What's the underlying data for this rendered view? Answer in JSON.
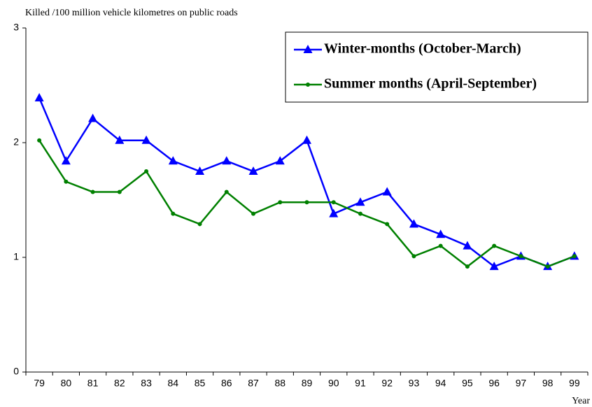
{
  "chart_data": {
    "type": "line",
    "title": "Killed /100 million vehicle kilometres on public roads",
    "x_label": "Year",
    "categories": [
      "79",
      "80",
      "81",
      "82",
      "83",
      "84",
      "85",
      "86",
      "87",
      "88",
      "89",
      "90",
      "91",
      "92",
      "93",
      "94",
      "95",
      "96",
      "97",
      "98",
      "99"
    ],
    "series": [
      {
        "name": "Winter-months (October-March)",
        "color": "#0000ff",
        "marker": "triangle",
        "values": [
          2.39,
          1.84,
          2.21,
          2.02,
          2.02,
          1.84,
          1.75,
          1.84,
          1.75,
          1.84,
          2.02,
          1.38,
          1.48,
          1.57,
          1.29,
          1.2,
          1.1,
          0.92,
          1.01,
          0.92,
          1.01
        ]
      },
      {
        "name": "Summer months (April-September)",
        "color": "#008000",
        "marker": "circle",
        "values": [
          2.02,
          1.66,
          1.57,
          1.57,
          1.75,
          1.38,
          1.29,
          1.57,
          1.38,
          1.48,
          1.48,
          1.48,
          1.38,
          1.29,
          1.01,
          1.1,
          0.92,
          1.1,
          1.01,
          0.92,
          1.01
        ]
      }
    ],
    "ylim": [
      0,
      3
    ],
    "yticks": [
      0,
      1,
      2,
      3
    ],
    "grid": false,
    "legend": "top-right"
  }
}
